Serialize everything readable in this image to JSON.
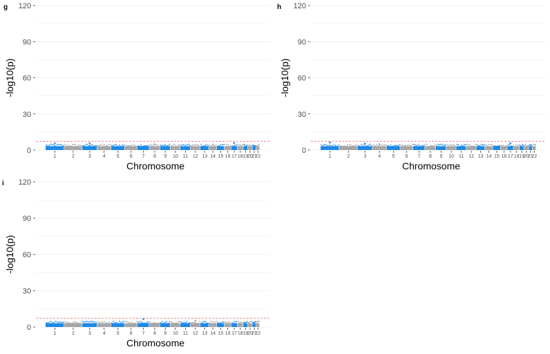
{
  "chart_data": [
    {
      "panel": "g",
      "type": "scatter",
      "xlabel": "Chromosome",
      "ylabel": "-log10(p)",
      "ylim": [
        0,
        120
      ],
      "yticks": [
        0,
        30,
        60,
        90,
        120
      ],
      "categories": [
        "1",
        "2",
        "3",
        "4",
        "5",
        "6",
        "7",
        "8",
        "9",
        "10",
        "11",
        "12",
        "13",
        "14",
        "15",
        "16",
        "17",
        "18",
        "19",
        "20",
        "21",
        "22"
      ],
      "threshold": 7.3,
      "colors": {
        "odd": "#1E88E5",
        "even": "#A6A6A6",
        "threshold": "#E57373",
        "grid": "#EBEBEB"
      },
      "peaks": [
        {
          "chr": 1,
          "y": 5.5
        },
        {
          "chr": 3,
          "y": 5.6
        },
        {
          "chr": 8,
          "y": 4.8
        },
        {
          "chr": 14,
          "y": 4.6
        },
        {
          "chr": 17,
          "y": 5.9
        }
      ],
      "grid": true
    },
    {
      "panel": "h",
      "type": "scatter",
      "xlabel": "Chromosome",
      "ylabel": "-log10(p)",
      "ylim": [
        0,
        120
      ],
      "yticks": [
        0,
        30,
        60,
        90,
        120
      ],
      "categories": [
        "1",
        "2",
        "3",
        "4",
        "5",
        "6",
        "7",
        "8",
        "9",
        "10",
        "11",
        "12",
        "13",
        "14",
        "15",
        "16",
        "17",
        "18",
        "19",
        "20",
        "21",
        "22"
      ],
      "threshold": 7.3,
      "colors": {
        "odd": "#1E88E5",
        "even": "#A6A6A6",
        "threshold": "#E57373",
        "grid": "#EBEBEB"
      },
      "peaks": [
        {
          "chr": 1,
          "y": 6.2
        },
        {
          "chr": 3,
          "y": 5.3
        },
        {
          "chr": 4,
          "y": 5.0
        },
        {
          "chr": 17,
          "y": 5.6
        }
      ],
      "grid": true
    },
    {
      "panel": "i",
      "type": "scatter",
      "xlabel": "Chromosome",
      "ylabel": "-log10(p)",
      "ylim": [
        0,
        120
      ],
      "yticks": [
        0,
        30,
        60,
        90,
        120
      ],
      "categories": [
        "1",
        "2",
        "3",
        "4",
        "5",
        "6",
        "7",
        "8",
        "9",
        "10",
        "11",
        "12",
        "13",
        "14",
        "15",
        "16",
        "17",
        "18",
        "19",
        "20",
        "21",
        "22"
      ],
      "threshold": 7.3,
      "colors": {
        "odd": "#1E88E5",
        "even": "#A6A6A6",
        "threshold": "#E57373",
        "grid": "#EBEBEB"
      },
      "peaks": [
        {
          "chr": 7,
          "y": 6.5
        },
        {
          "chr": 12,
          "y": 5.2
        }
      ],
      "grid": true
    }
  ]
}
